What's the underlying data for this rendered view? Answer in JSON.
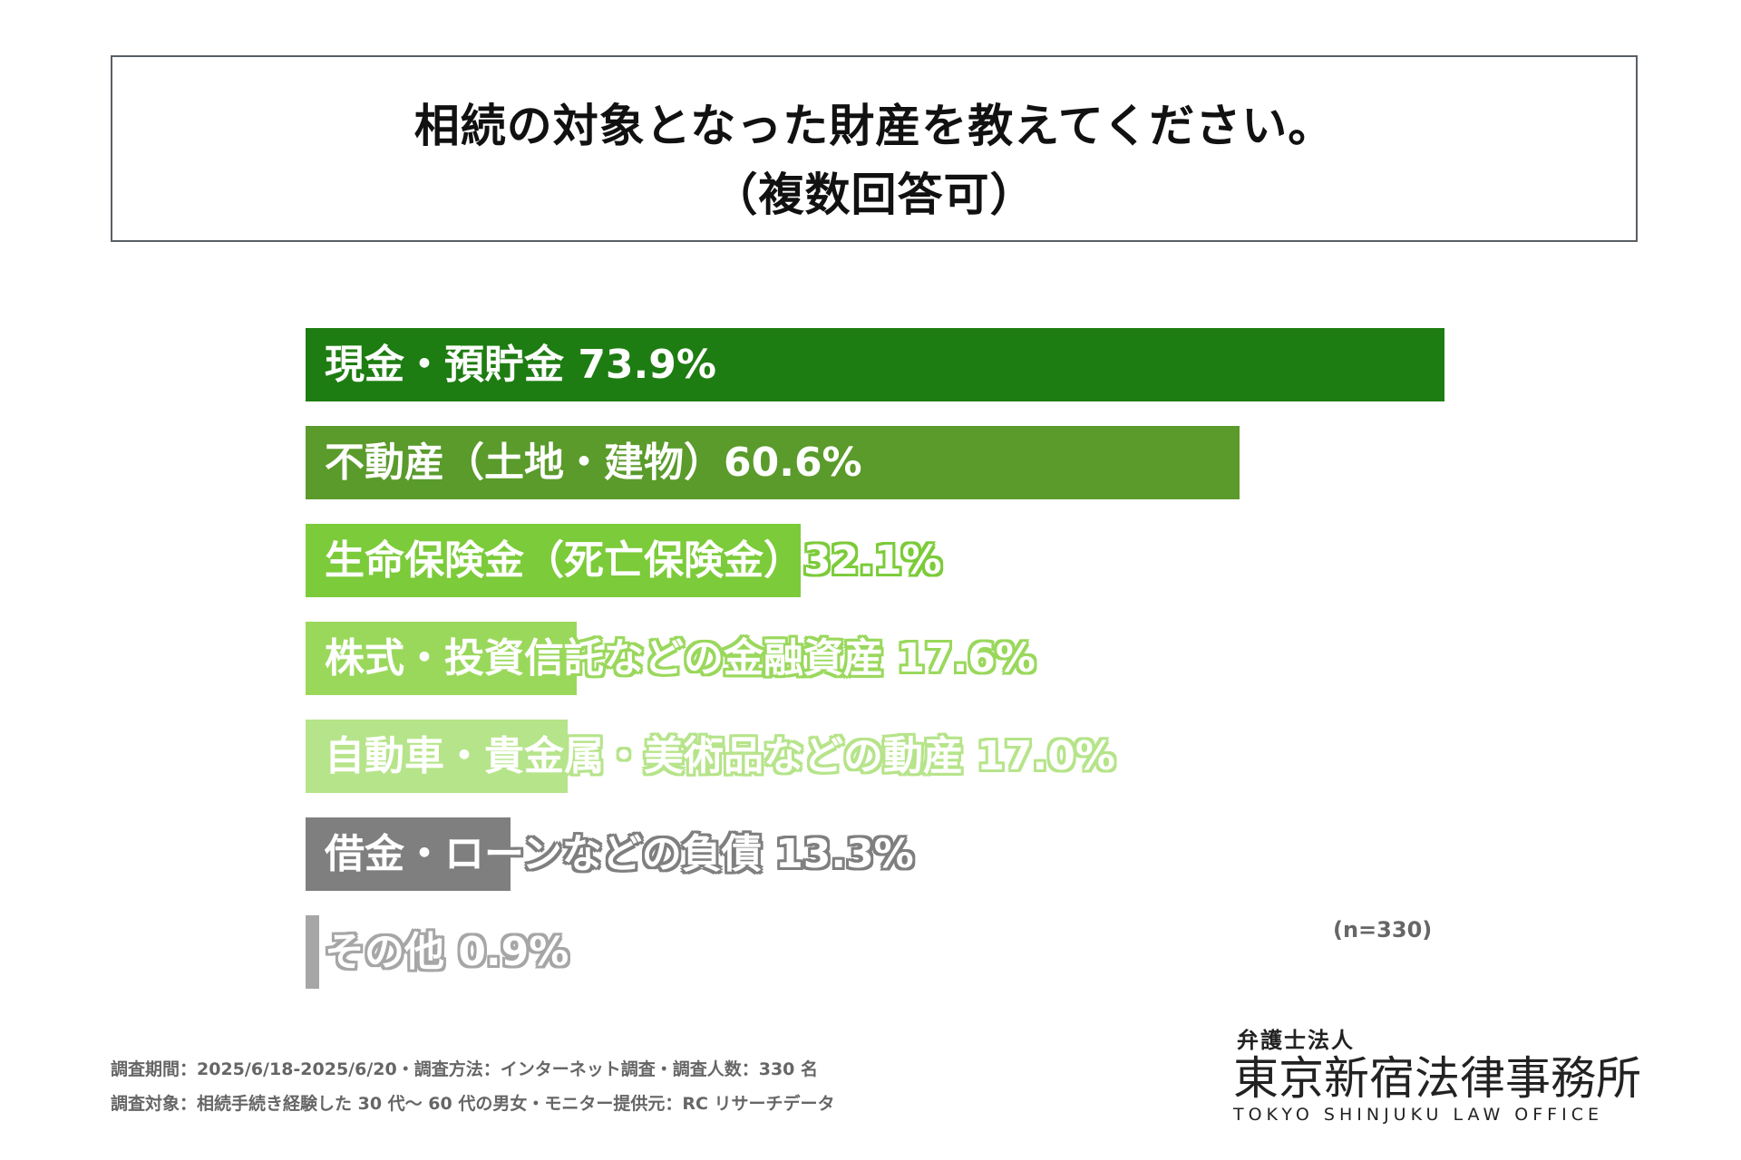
{
  "title": {
    "line1": "相続の対象となった財産を教えてください。",
    "line2": "（複数回答可）"
  },
  "chart_data": {
    "type": "bar",
    "orientation": "horizontal",
    "title": "相続の対象となった財産を教えてください。（複数回答可）",
    "unit": "%",
    "categories": [
      "現金・預貯金",
      "不動産（土地・建物）",
      "生命保険金（死亡保険金）",
      "株式・投資信託などの金融資産",
      "自動車・貴金属・美術品などの動産",
      "借金・ローンなどの負債",
      "その他"
    ],
    "values": [
      73.9,
      60.6,
      32.1,
      17.6,
      17.0,
      13.3,
      0.9
    ],
    "labels": [
      "現金・預貯金  73.9%",
      "不動産（土地・建物）60.6%",
      "生命保険金（死亡保険金）32.1%",
      "株式・投資信託などの金融資産  17.6%",
      "自動車・貴金属・美術品などの動産  17.0%",
      "借金・ローンなどの負債  13.3%",
      "その他  0.9%"
    ],
    "colors": [
      "#1e7d12",
      "#5a9b2b",
      "#7ccb3a",
      "#9ad85c",
      "#b6e48a",
      "#7f7f7f",
      "#a6a6a6"
    ],
    "xlim": [
      0,
      100
    ],
    "n_label": "(n=330)"
  },
  "footer": {
    "line1": "調査期間：2025/6/18-2025/6/20・調査方法：インターネット調査・調査人数：330 名",
    "line2": "調査対象：相続手続き経験した 30 代～ 60 代の男女・モニター提供元：RC リサーチデータ"
  },
  "logo": {
    "small": "弁護士法人",
    "main": "東京新宿法律事務所",
    "english": "TOKYO SHINJUKU LAW OFFICE"
  }
}
